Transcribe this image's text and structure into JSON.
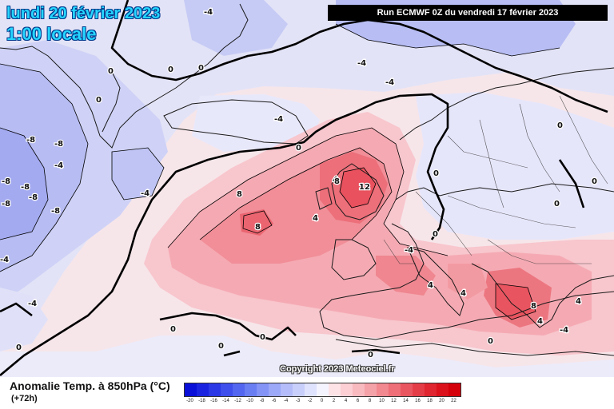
{
  "header": {
    "date": "lundi 20 février 2023",
    "hour": "1:00 locale",
    "run": "Run ECMWF 0Z du vendredi 17 février 2023"
  },
  "copyright": "Copyright 2023 Meteociel.fr",
  "legend": {
    "title": "Anomalie Temp. à 850hPa (°C)",
    "lead": "(+72h)",
    "scale": [
      {
        "v": "-20",
        "c": "#0a10d8"
      },
      {
        "v": "-18",
        "c": "#1a24e0"
      },
      {
        "v": "-16",
        "c": "#2b38e6"
      },
      {
        "v": "-14",
        "c": "#3e4fec"
      },
      {
        "v": "-12",
        "c": "#5366f0"
      },
      {
        "v": "-10",
        "c": "#6a7ef3"
      },
      {
        "v": "-8",
        "c": "#8393f6"
      },
      {
        "v": "-6",
        "c": "#9ca8f8"
      },
      {
        "v": "-4",
        "c": "#b4bdfa"
      },
      {
        "v": "-3",
        "c": "#c8cffb"
      },
      {
        "v": "-2",
        "c": "#dfe3fd"
      },
      {
        "v": "0",
        "c": "#f4f4ff"
      },
      {
        "v": "2",
        "c": "#fde3e6"
      },
      {
        "v": "4",
        "c": "#fbcfd4"
      },
      {
        "v": "6",
        "c": "#f8b9bf"
      },
      {
        "v": "8",
        "c": "#f5a1a8"
      },
      {
        "v": "10",
        "c": "#f28890"
      },
      {
        "v": "12",
        "c": "#ee6f78"
      },
      {
        "v": "14",
        "c": "#ea5660"
      },
      {
        "v": "16",
        "c": "#e53d48"
      },
      {
        "v": "18",
        "c": "#e02630"
      },
      {
        "v": "20",
        "c": "#db121c"
      },
      {
        "v": "22",
        "c": "#d4000a"
      }
    ]
  },
  "map": {
    "contour_labels": [
      "0",
      "0",
      "0",
      "0",
      "0",
      "0",
      "0",
      "0",
      "0",
      "0",
      "0",
      "0",
      "0",
      "0",
      "0",
      "0",
      "-4",
      "-4",
      "-4",
      "-4",
      "-4",
      "-4",
      "-4",
      "-4",
      "-4",
      "-4",
      "-8",
      "-8",
      "-8",
      "-8",
      "-8",
      "-8",
      "-8",
      "4",
      "4",
      "4",
      "4",
      "4",
      "4",
      "8",
      "8",
      "8",
      "8",
      "12"
    ]
  }
}
